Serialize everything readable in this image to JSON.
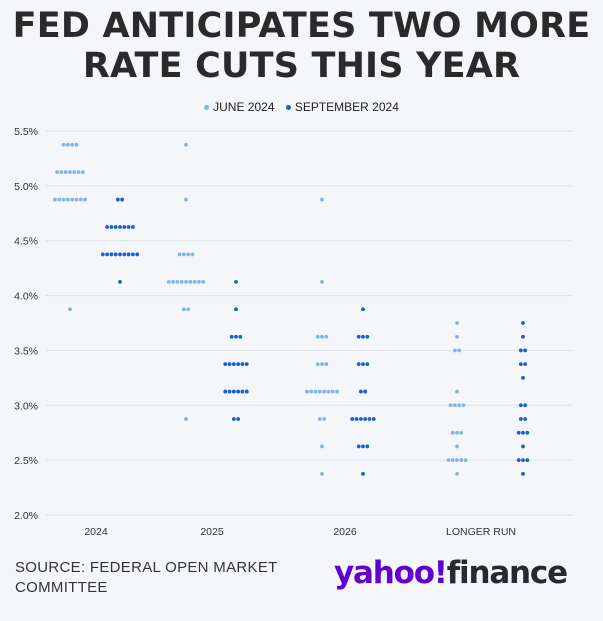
{
  "title_line1": "FED ANTICIPATES TWO MORE",
  "title_line2": "RATE CUTS THIS YEAR",
  "source_text": "SOURCE: FEDERAL OPEN MARKET COMMITTEE",
  "logo": {
    "yahoo": "yahoo!",
    "finance": "finance"
  },
  "colors": {
    "june": "#83b4e8",
    "september": "#1a5fd0",
    "grid": "#dde2e8",
    "background": "#f4f6f9"
  },
  "chart_data": {
    "type": "scatter",
    "title": "FED ANTICIPATES TWO MORE RATE CUTS THIS YEAR",
    "categories": [
      "2024",
      "2025",
      "2026",
      "LONGER RUN"
    ],
    "y_ticks": [
      "5.5%",
      "5.0%",
      "4.5%",
      "4.0%",
      "3.5%",
      "3.0%",
      "2.5%",
      "2.0%"
    ],
    "ylim": [
      2.0,
      5.5
    ],
    "grid": true,
    "legend_position": "top-center",
    "series": [
      {
        "name": "JUNE 2024",
        "dots": [
          [
            [
              5.375,
              4
            ],
            [
              5.125,
              7
            ],
            [
              4.875,
              8
            ],
            [
              3.875,
              1
            ]
          ],
          [
            [
              5.375,
              1
            ],
            [
              4.875,
              1
            ],
            [
              4.375,
              4
            ],
            [
              4.125,
              9
            ],
            [
              3.875,
              2
            ],
            [
              2.875,
              1
            ]
          ],
          [
            [
              4.875,
              1
            ],
            [
              4.125,
              1
            ],
            [
              3.625,
              3
            ],
            [
              3.375,
              3
            ],
            [
              3.125,
              8
            ],
            [
              2.875,
              2
            ],
            [
              2.625,
              1
            ],
            [
              2.375,
              1
            ]
          ],
          [
            [
              3.75,
              1
            ],
            [
              3.625,
              1
            ],
            [
              3.5,
              2
            ],
            [
              3.125,
              1
            ],
            [
              3.0,
              4
            ],
            [
              2.75,
              3
            ],
            [
              2.625,
              1
            ],
            [
              2.5,
              5
            ],
            [
              2.375,
              1
            ]
          ]
        ]
      },
      {
        "name": "SEPTEMBER 2024",
        "dots": [
          [
            [
              4.875,
              2
            ],
            [
              4.625,
              7
            ],
            [
              4.375,
              9
            ],
            [
              4.125,
              1
            ]
          ],
          [
            [
              4.125,
              1
            ],
            [
              3.875,
              1
            ],
            [
              3.625,
              3
            ],
            [
              3.375,
              6
            ],
            [
              3.125,
              6
            ],
            [
              2.875,
              2
            ]
          ],
          [
            [
              3.875,
              1
            ],
            [
              3.625,
              3
            ],
            [
              3.375,
              3
            ],
            [
              3.125,
              2
            ],
            [
              2.875,
              6
            ],
            [
              2.625,
              3
            ],
            [
              2.375,
              1
            ]
          ],
          [
            [
              3.75,
              1
            ],
            [
              3.625,
              1
            ],
            [
              3.5,
              2
            ],
            [
              3.375,
              2
            ],
            [
              3.25,
              1
            ],
            [
              3.0,
              2
            ],
            [
              2.875,
              2
            ],
            [
              2.75,
              3
            ],
            [
              2.625,
              1
            ],
            [
              2.5,
              3
            ],
            [
              2.375,
              1
            ]
          ]
        ]
      }
    ]
  }
}
